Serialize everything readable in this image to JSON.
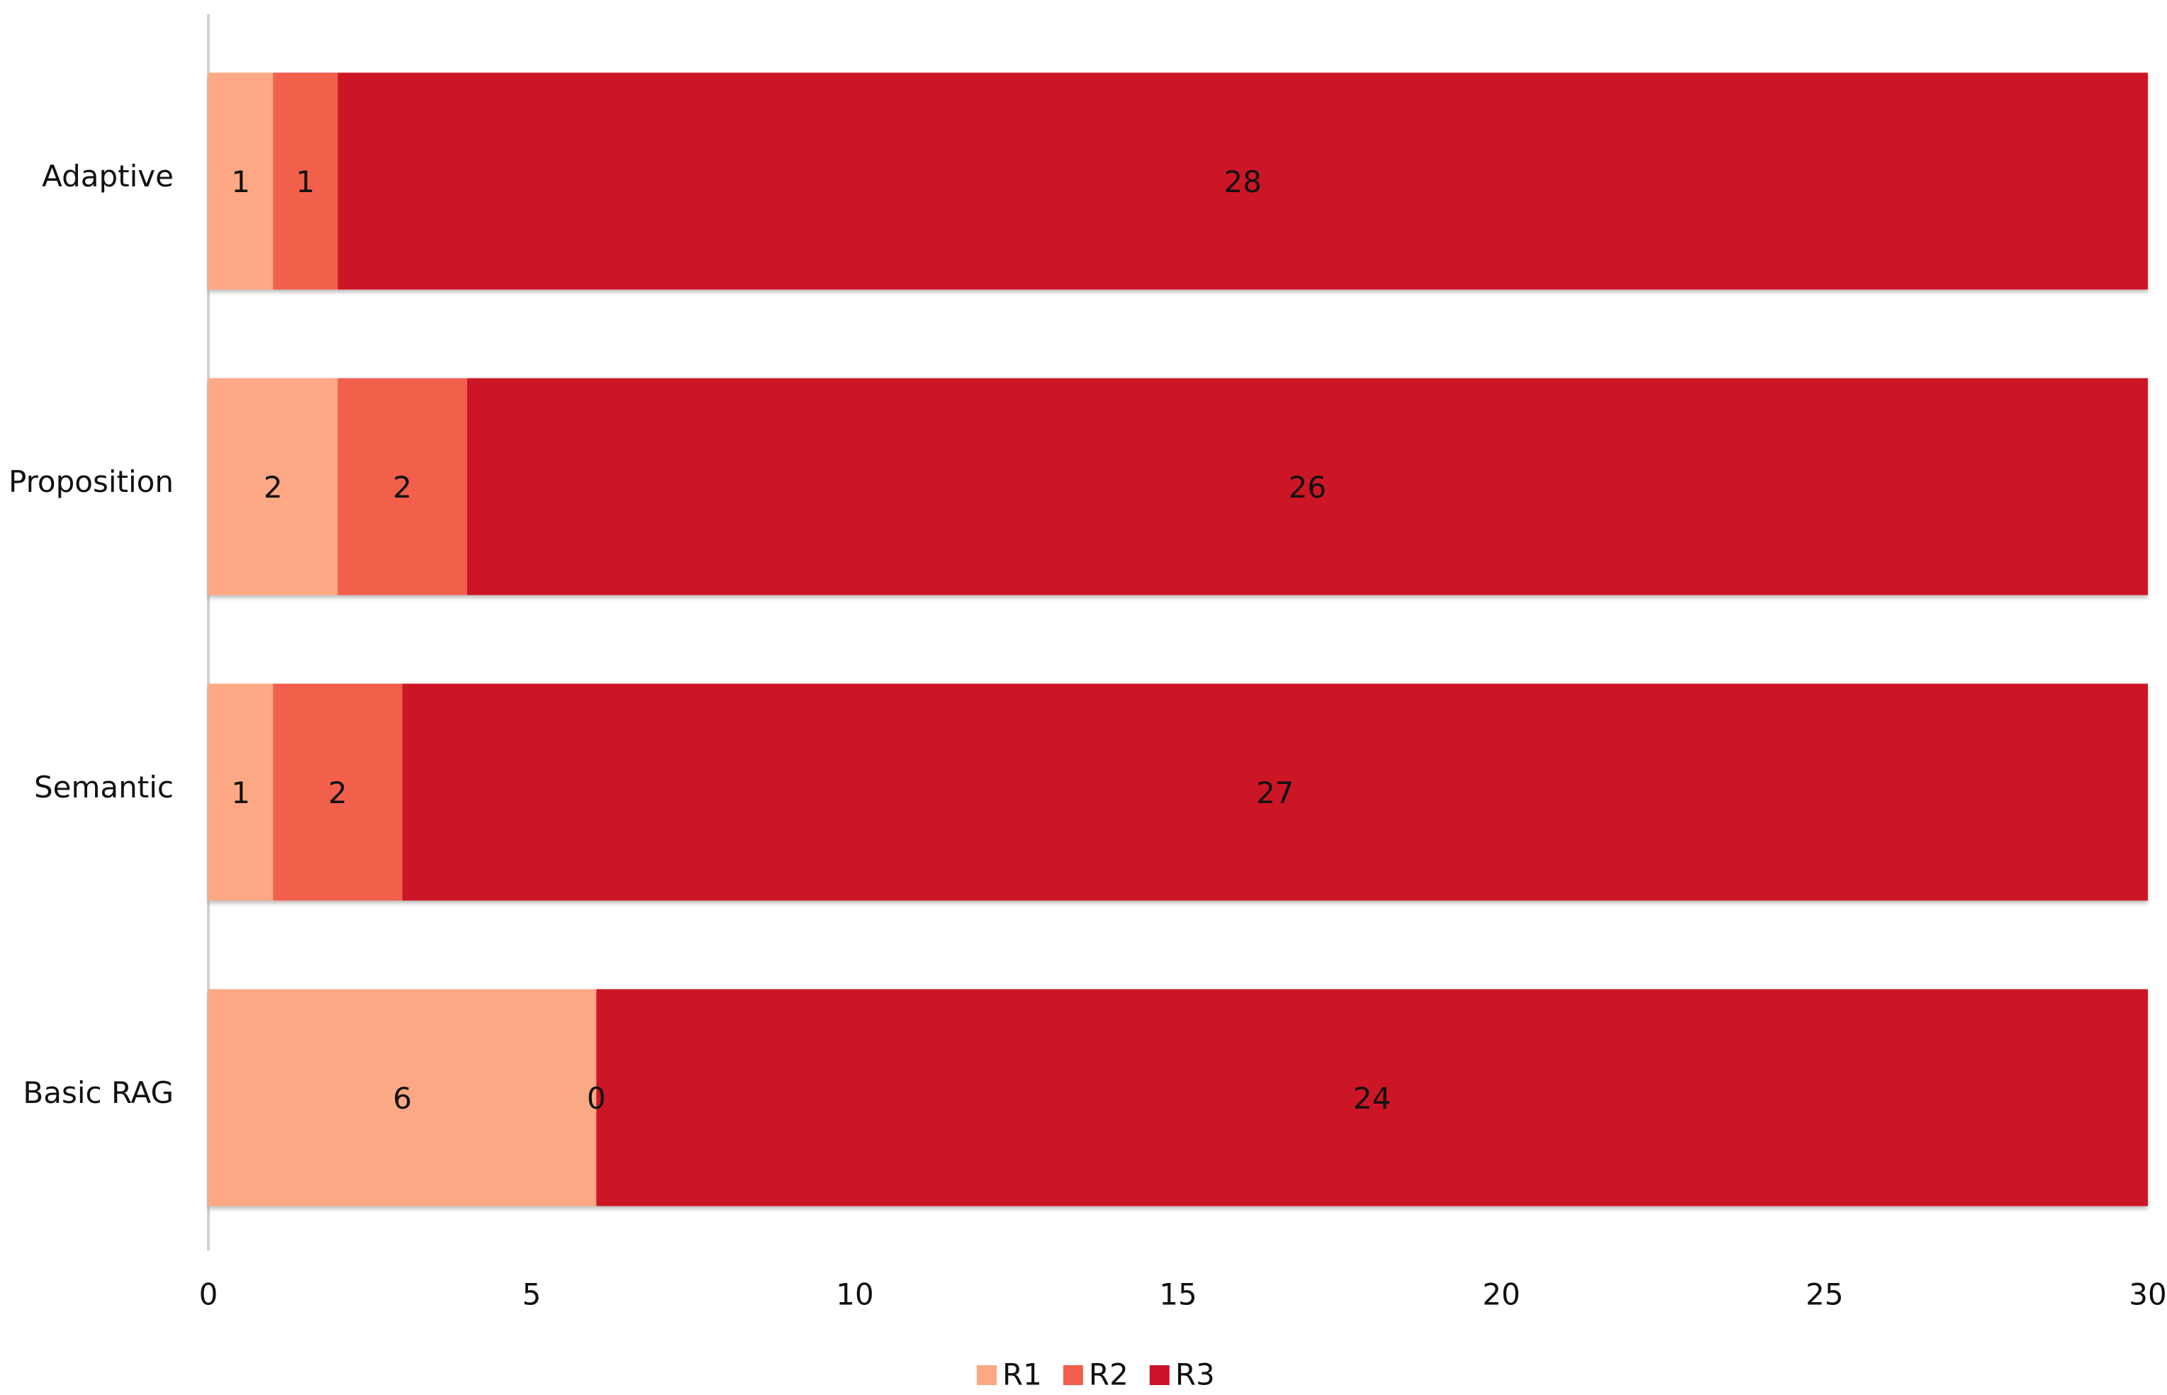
{
  "chart_data": {
    "type": "stacked-barh",
    "categories": [
      "Adaptive",
      "Proposition",
      "Semantic",
      "Basic RAG"
    ],
    "series": [
      {
        "name": "R1",
        "color": "#fca884",
        "values": [
          1,
          2,
          1,
          6
        ]
      },
      {
        "name": "R2",
        "color": "#f25f4c",
        "values": [
          1,
          2,
          2,
          0
        ]
      },
      {
        "name": "R3",
        "color": "#cc1228",
        "values": [
          28,
          26,
          27,
          24
        ]
      }
    ],
    "xlim": [
      0,
      30
    ],
    "xticks": [
      0,
      5,
      10,
      15,
      20,
      25,
      30
    ],
    "legend": "bottom"
  }
}
